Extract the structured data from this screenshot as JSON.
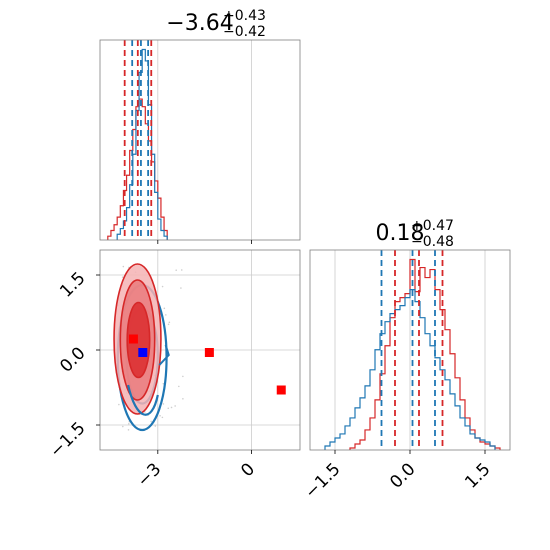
{
  "chart_data": [
    {
      "type": "histogram",
      "panel": "top-left",
      "title": {
        "main": "−3.64",
        "upper": "+0.43",
        "lower": "−0.42"
      },
      "xlim": [
        -4.85,
        1.55
      ],
      "grid": true,
      "series": [
        {
          "name": "",
          "color": "#d62728",
          "bin_edges": [
            -4.6,
            -4.5,
            -4.4,
            -4.3,
            -4.2,
            -4.1,
            -4.0,
            -3.9,
            -3.8,
            -3.7,
            -3.6,
            -3.5,
            -3.4,
            -3.3,
            -3.2,
            -3.1,
            -3.0,
            -2.9,
            -2.8,
            -2.7
          ],
          "counts": [
            0.02,
            0.05,
            0.08,
            0.12,
            0.18,
            0.26,
            0.34,
            0.47,
            0.58,
            0.7,
            0.74,
            0.7,
            0.61,
            0.52,
            0.41,
            0.31,
            0.22,
            0.12,
            0.05
          ]
        },
        {
          "name": "",
          "color": "#1f77b4",
          "bin_edges": [
            -4.3,
            -4.2,
            -4.1,
            -4.0,
            -3.9,
            -3.8,
            -3.7,
            -3.6,
            -3.5,
            -3.4,
            -3.3,
            -3.2,
            -3.1,
            -3.0,
            -2.9,
            -2.8,
            -2.7
          ],
          "counts": [
            0.03,
            0.06,
            0.1,
            0.17,
            0.29,
            0.45,
            0.68,
            0.88,
            1.0,
            0.94,
            0.71,
            0.45,
            0.25,
            0.11,
            0.05,
            0.02
          ]
        }
      ],
      "quantile_lines": [
        {
          "color": "#d62728",
          "x": [
            -4.06,
            -3.64,
            -3.21
          ]
        },
        {
          "color": "#1f77b4",
          "x": [
            -3.82,
            -3.54,
            -3.31
          ]
        }
      ]
    },
    {
      "type": "scatter",
      "panel": "bottom-left",
      "xlim": [
        -4.85,
        1.55
      ],
      "ylim": [
        -2.0,
        2.0
      ],
      "x_ticks": [
        "−3",
        "0"
      ],
      "x_tick_values": [
        -3,
        0
      ],
      "y_ticks": [
        "1.5",
        "0.0",
        "−1.5"
      ],
      "y_tick_values": [
        1.5,
        0.0,
        -1.5
      ],
      "grid": true,
      "contours": [
        {
          "color": "#d62728",
          "filled": true,
          "levels": [
            {
              "cx": -3.65,
              "cy": 0.22,
              "rx": 0.75,
              "ry": 1.5
            },
            {
              "cx": -3.65,
              "cy": 0.2,
              "rx": 0.55,
              "ry": 1.2
            },
            {
              "cx": -3.62,
              "cy": 0.2,
              "rx": 0.36,
              "ry": 0.75
            }
          ]
        },
        {
          "color": "#1f77b4",
          "filled": false,
          "levels": [
            {
              "cx": -3.5,
              "cy": -0.15,
              "rx": 0.78,
              "ry": 1.45
            },
            {
              "cx": -3.5,
              "cy": -0.12,
              "rx": 0.5,
              "ry": 0.95
            }
          ]
        }
      ],
      "markers": [
        {
          "color": "#ff0000",
          "x": -3.78,
          "y": 0.22
        },
        {
          "color": "#ff0000",
          "x": -1.35,
          "y": -0.05
        },
        {
          "color": "#ff0000",
          "x": 0.95,
          "y": -0.8
        },
        {
          "color": "#0000ff",
          "x": -3.48,
          "y": -0.05
        }
      ]
    },
    {
      "type": "histogram",
      "panel": "bottom-right",
      "title": {
        "main": "0.18",
        "upper": "+0.47",
        "lower": "−0.48"
      },
      "xlim": [
        -2.0,
        2.0
      ],
      "x_ticks": [
        "−1.5",
        "0.0",
        "1.5"
      ],
      "x_tick_values": [
        -1.5,
        0.0,
        1.5
      ],
      "grid": true,
      "series": [
        {
          "name": "",
          "color": "#d62728",
          "bin_edges": [
            -1.2,
            -1.1,
            -1.0,
            -0.9,
            -0.8,
            -0.7,
            -0.6,
            -0.5,
            -0.4,
            -0.3,
            -0.2,
            -0.1,
            0.0,
            0.1,
            0.2,
            0.3,
            0.4,
            0.5,
            0.6,
            0.7,
            0.8,
            0.9,
            1.0,
            1.1,
            1.2,
            1.3,
            1.4,
            1.5,
            1.6,
            1.7,
            1.8
          ],
          "counts": [
            0.01,
            0.03,
            0.05,
            0.1,
            0.16,
            0.25,
            0.38,
            0.52,
            0.66,
            0.74,
            0.76,
            0.78,
            0.95,
            0.79,
            0.91,
            0.86,
            0.9,
            0.8,
            0.7,
            0.6,
            0.48,
            0.36,
            0.25,
            0.16,
            0.1,
            0.06,
            0.04,
            0.03,
            0.02,
            0.01
          ]
        },
        {
          "name": "",
          "color": "#1f77b4",
          "bin_edges": [
            -1.7,
            -1.6,
            -1.5,
            -1.4,
            -1.3,
            -1.2,
            -1.1,
            -1.0,
            -0.9,
            -0.8,
            -0.7,
            -0.6,
            -0.5,
            -0.4,
            -0.3,
            -0.2,
            -0.1,
            0.0,
            0.1,
            0.2,
            0.3,
            0.4,
            0.5,
            0.6,
            0.7,
            0.8,
            0.9,
            1.0,
            1.1,
            1.2,
            1.3,
            1.4,
            1.5,
            1.6,
            1.7
          ],
          "counts": [
            0.02,
            0.04,
            0.06,
            0.08,
            0.12,
            0.16,
            0.21,
            0.26,
            0.32,
            0.4,
            0.5,
            0.58,
            0.64,
            0.68,
            0.7,
            0.72,
            0.76,
            0.8,
            0.74,
            0.66,
            0.58,
            0.52,
            0.46,
            0.4,
            0.35,
            0.28,
            0.22,
            0.16,
            0.12,
            0.08,
            0.06,
            0.05,
            0.04,
            0.02
          ]
        }
      ],
      "quantile_lines": [
        {
          "color": "#d62728",
          "x": [
            -0.3,
            0.18,
            0.65
          ]
        },
        {
          "color": "#1f77b4",
          "x": [
            -0.57,
            0.05,
            0.5
          ]
        }
      ]
    }
  ],
  "colors": {
    "red": "#d62728",
    "blue": "#1f77b4",
    "marker_red": "#ff0000",
    "marker_blue": "#0000ff",
    "grid": "#cccccc",
    "axis": "#7f7f7f"
  }
}
